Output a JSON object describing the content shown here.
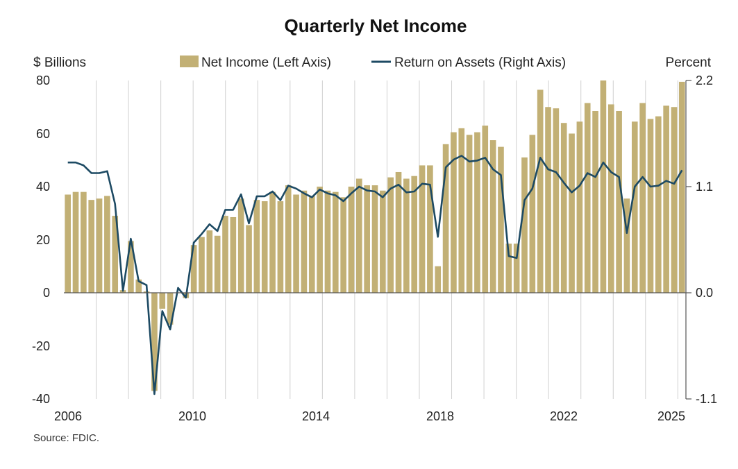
{
  "chart_data": {
    "type": "bar",
    "title": "Quarterly Net Income",
    "left_axis": {
      "unit_label": "$ Billions",
      "ylim": [
        -40,
        80
      ],
      "ticks": [
        "80",
        "60",
        "40",
        "20",
        "0",
        "-20",
        "-40"
      ]
    },
    "right_axis": {
      "unit_label": "Percent",
      "ylim": [
        -1.1,
        2.2
      ],
      "ticks": [
        "2.2",
        "1.1",
        "0.0",
        "-1.1"
      ]
    },
    "x_ticks": [
      "2006",
      "2010",
      "2014",
      "2018",
      "2022",
      "2025"
    ],
    "x_range": [
      2006,
      2025.25
    ],
    "grid": "vertical",
    "legend_position": "top",
    "colors": {
      "bars": "#c2b075",
      "line": "#1d4a63",
      "grid": "#d0d0d0"
    },
    "series": [
      {
        "name": "Net Income (Left Axis)",
        "type": "bar",
        "axis": "left",
        "values": [
          37,
          38,
          38,
          35,
          35.5,
          36.5,
          29,
          1,
          19.5,
          5,
          0.5,
          -37,
          -6,
          -12,
          0,
          -2,
          18,
          21,
          23.5,
          21.5,
          29,
          28.5,
          35.5,
          25.5,
          35,
          34.5,
          38,
          34.5,
          40.5,
          37,
          38.5,
          36.5,
          40,
          38.5,
          38,
          36,
          40,
          43,
          40.5,
          40.5,
          38.5,
          43.5,
          45.5,
          43,
          44,
          48,
          48,
          10,
          56,
          60.5,
          62,
          59.5,
          60.5,
          63,
          57.5,
          55,
          18.5,
          18.5,
          51,
          59.5,
          76.5,
          70,
          69.5,
          64,
          60,
          64.5,
          71.5,
          68.5,
          80,
          71,
          68.5,
          35.5,
          64.5,
          71.5,
          65.5,
          66.5,
          70.5,
          70,
          79.5
        ]
      },
      {
        "name": "Return on Assets (Right Axis)",
        "type": "line",
        "axis": "right",
        "values": [
          1.35,
          1.35,
          1.32,
          1.24,
          1.24,
          1.26,
          0.92,
          0.02,
          0.56,
          0.12,
          0.08,
          -1.05,
          -0.19,
          -0.38,
          0.05,
          -0.05,
          0.52,
          0.61,
          0.71,
          0.64,
          0.86,
          0.86,
          1.02,
          0.72,
          1.0,
          1.0,
          1.05,
          0.96,
          1.11,
          1.08,
          1.03,
          0.99,
          1.07,
          1.03,
          1.01,
          0.95,
          1.03,
          1.1,
          1.06,
          1.05,
          0.99,
          1.08,
          1.12,
          1.04,
          1.05,
          1.13,
          1.12,
          0.58,
          1.3,
          1.38,
          1.42,
          1.36,
          1.37,
          1.4,
          1.28,
          1.22,
          0.38,
          0.36,
          0.96,
          1.08,
          1.4,
          1.28,
          1.25,
          1.14,
          1.04,
          1.11,
          1.24,
          1.2,
          1.35,
          1.25,
          1.2,
          0.62,
          1.1,
          1.2,
          1.1,
          1.11,
          1.16,
          1.13,
          1.27
        ]
      }
    ],
    "source": "Source: FDIC."
  }
}
